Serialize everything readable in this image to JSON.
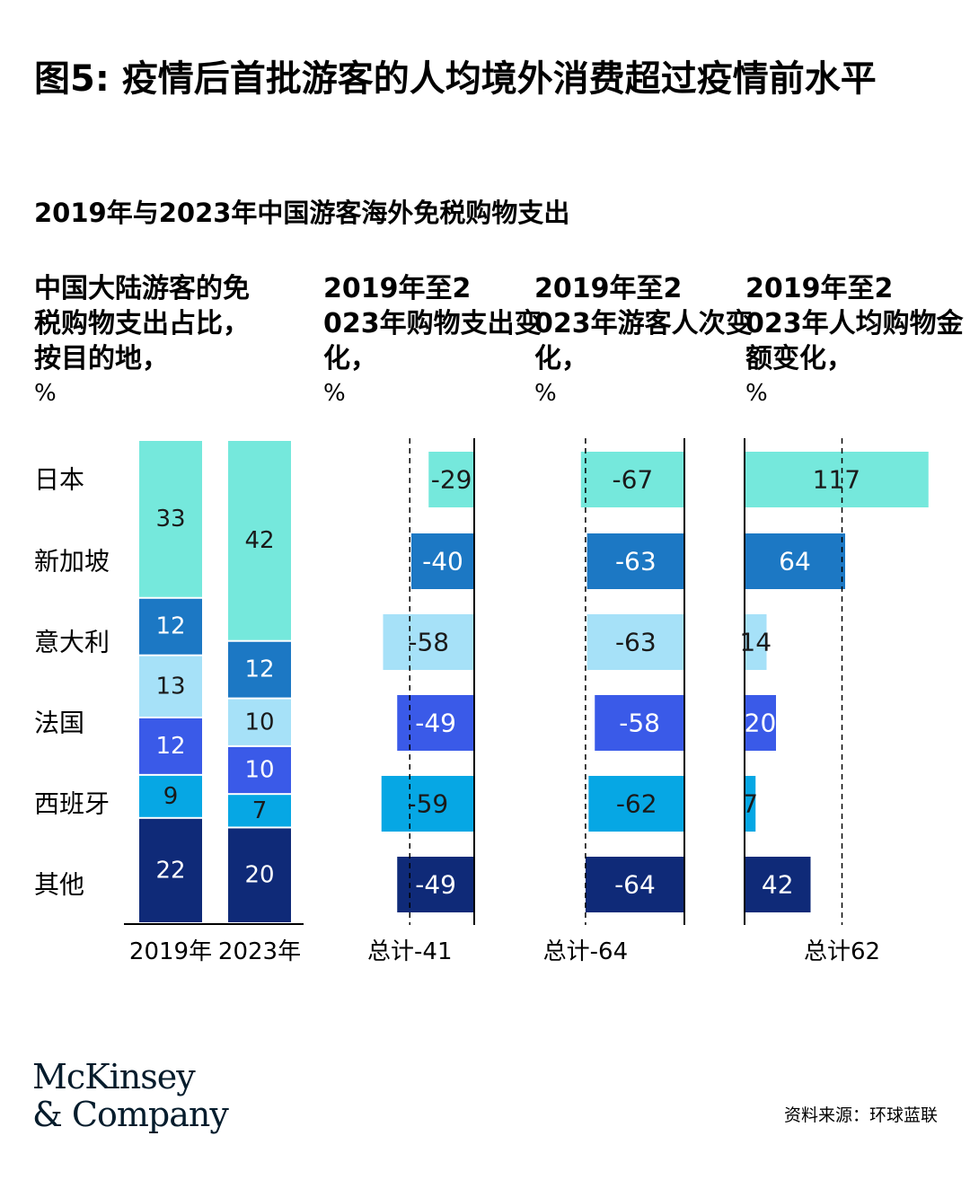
{
  "title": "图5: 疫情后首批游客的人均境外消费超过疫情前水平",
  "subtitle": "2019年与2023年中国游客海外免税购物支出",
  "panels": {
    "share": {
      "title": "中国大陆游客的免税购物支出占比，按目的地，",
      "unit": "%"
    },
    "spend": {
      "title": "2019年至2023年购物支出变化，",
      "unit": "%"
    },
    "visits": {
      "title": "2019年至2023年游客人次变化，",
      "unit": "%"
    },
    "per_capita": {
      "title": "2019年至2023年人均购物金额变化，",
      "unit": "%"
    }
  },
  "colors": {
    "日本": "#75e8dc",
    "新加坡": "#1c78c4",
    "意大利": "#a6e1f8",
    "法国": "#3a5ae8",
    "西班牙": "#06a7e4",
    "其他": "#0f2a78",
    "label_dark": "#ffffff",
    "label_light": "#1a1a1a"
  },
  "chart_data": [
    {
      "type": "bar",
      "stacked": true,
      "categories": [
        "2019年",
        "2023年"
      ],
      "series": [
        {
          "name": "其他",
          "values": [
            22,
            20
          ]
        },
        {
          "name": "西班牙",
          "values": [
            9,
            7
          ]
        },
        {
          "name": "法国",
          "values": [
            12,
            10
          ]
        },
        {
          "name": "意大利",
          "values": [
            13,
            10
          ]
        },
        {
          "name": "新加坡",
          "values": [
            12,
            12
          ]
        },
        {
          "name": "日本",
          "values": [
            33,
            42
          ]
        }
      ]
    },
    {
      "type": "bar",
      "orientation": "horizontal",
      "categories": [
        "日本",
        "新加坡",
        "意大利",
        "法国",
        "西班牙",
        "其他"
      ],
      "values": [
        -29,
        -40,
        -58,
        -49,
        -59,
        -49
      ],
      "total": -41,
      "total_label": "总计-41"
    },
    {
      "type": "bar",
      "orientation": "horizontal",
      "categories": [
        "日本",
        "新加坡",
        "意大利",
        "法国",
        "西班牙",
        "其他"
      ],
      "values": [
        -67,
        -63,
        -63,
        -58,
        -62,
        -64
      ],
      "total": -64,
      "total_label": "总计-64"
    },
    {
      "type": "bar",
      "orientation": "horizontal",
      "categories": [
        "日本",
        "新加坡",
        "意大利",
        "法国",
        "西班牙",
        "其他"
      ],
      "values": [
        117,
        64,
        14,
        20,
        7,
        42
      ],
      "total": 62,
      "total_label": "总计62"
    }
  ],
  "brand": {
    "line1": "McKinsey",
    "line2": "& Company"
  },
  "source": "资料来源：环球蓝联"
}
